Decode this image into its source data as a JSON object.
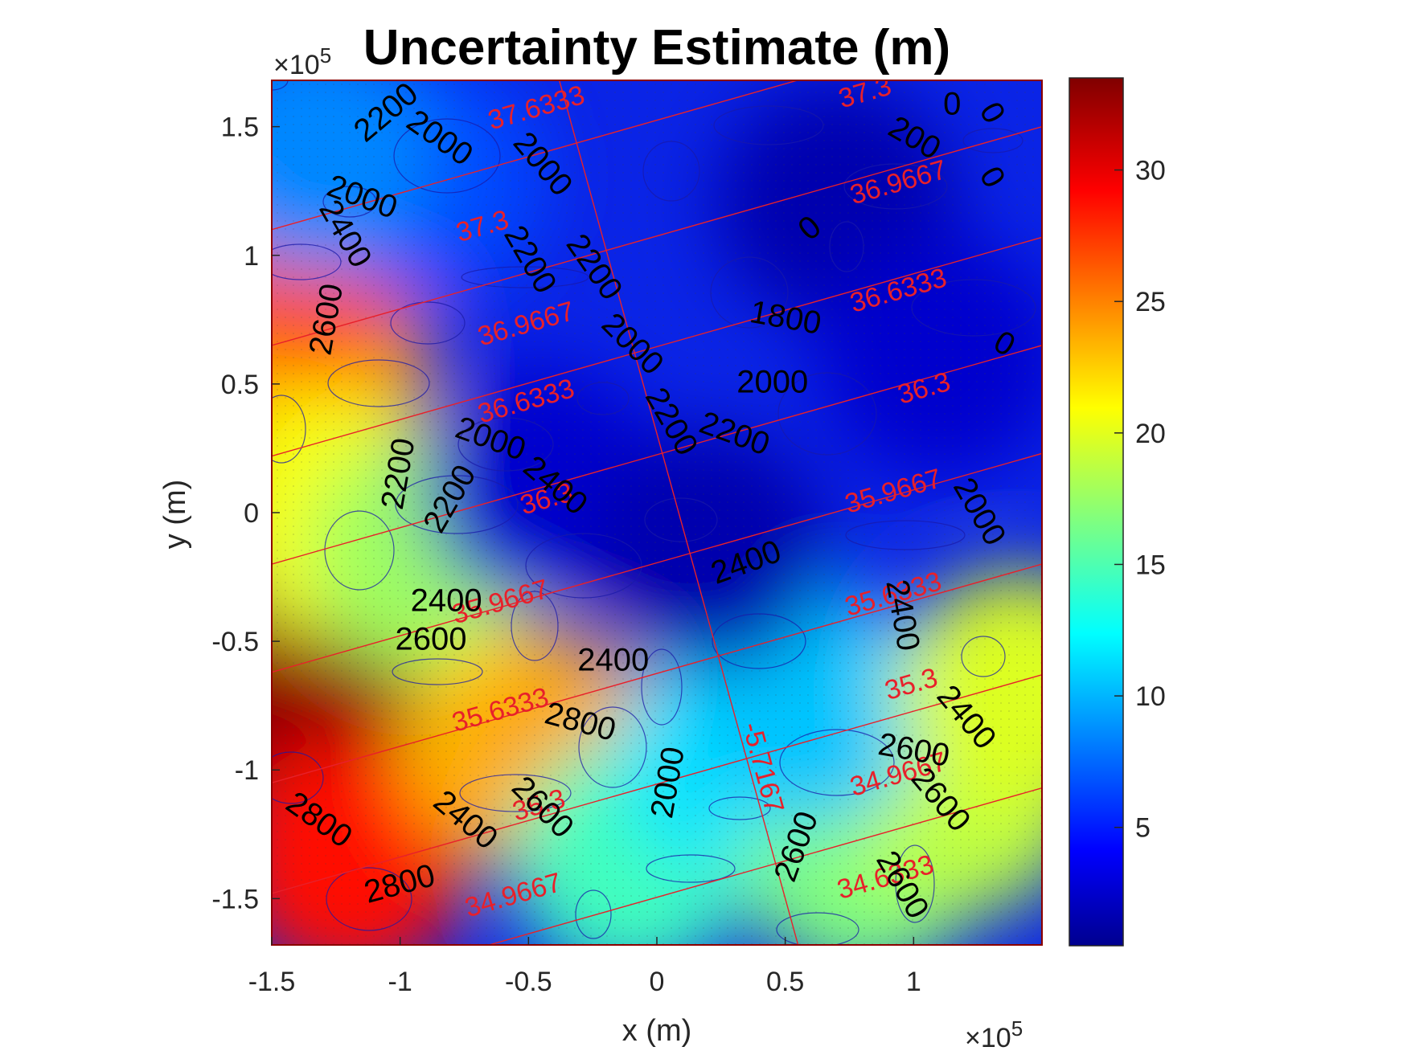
{
  "chart_data": {
    "type": "heatmap",
    "title": "Uncertainty Estimate (m)",
    "xlabel": "x (m)",
    "ylabel": "y (m)",
    "x_exponent_label": "×10",
    "x_exponent_power": "5",
    "y_exponent_label": "×10",
    "y_exponent_power": "5",
    "xlim": [
      -1.5,
      1.5
    ],
    "ylim": [
      -1.68,
      1.68
    ],
    "x_ticks": [
      "-1.5",
      "-1",
      "-0.5",
      "0",
      "0.5",
      "1"
    ],
    "x_tick_values": [
      -1.5,
      -1,
      -0.5,
      0,
      0.5,
      1
    ],
    "y_ticks": [
      "-1.5",
      "-1",
      "-0.5",
      "0",
      "0.5",
      "1",
      "1.5"
    ],
    "y_tick_values": [
      -1.5,
      -1,
      -0.5,
      0,
      0.5,
      1,
      1.5
    ],
    "colorbar": {
      "colormap": "jet",
      "range": [
        0.5,
        33.5
      ],
      "ticks": [
        "5",
        "10",
        "15",
        "20",
        "25",
        "30"
      ],
      "tick_values": [
        5,
        10,
        15,
        20,
        25,
        30
      ]
    },
    "regions": [
      {
        "x": -1.35,
        "y": 0.55,
        "value": 24
      },
      {
        "x": -1.35,
        "y": 1.0,
        "value": 27
      },
      {
        "x": -1.35,
        "y": -0.75,
        "value": 33
      },
      {
        "x": -1.2,
        "y": -1.35,
        "value": 29
      },
      {
        "x": -1.3,
        "y": 0.0,
        "value": 21
      },
      {
        "x": -0.9,
        "y": -0.15,
        "value": 18
      },
      {
        "x": -0.5,
        "y": -0.9,
        "value": 22
      },
      {
        "x": -0.4,
        "y": -0.95,
        "value": 24
      },
      {
        "x": -0.1,
        "y": -1.35,
        "value": 15
      },
      {
        "x": 0.3,
        "y": -0.95,
        "value": 12
      },
      {
        "x": 0.8,
        "y": -1.35,
        "value": 17
      },
      {
        "x": 1.2,
        "y": -1.1,
        "value": 19
      },
      {
        "x": 0.6,
        "y": -0.75,
        "value": 11
      },
      {
        "x": 1.4,
        "y": -0.7,
        "value": 20
      },
      {
        "x": -0.9,
        "y": 1.3,
        "value": 7
      },
      {
        "x": -0.45,
        "y": 0.1,
        "value": 3
      },
      {
        "x": 0.2,
        "y": -0.15,
        "value": 2
      },
      {
        "x": 0.7,
        "y": 1.2,
        "value": 2
      },
      {
        "x": 1.1,
        "y": 0.6,
        "value": 3
      },
      {
        "x": -1.35,
        "y": 1.4,
        "value": 9
      }
    ],
    "depth_contours": [
      {
        "label": "2200",
        "x": -1.05,
        "y": 1.55,
        "rotate": -40
      },
      {
        "label": "2000",
        "x": -0.85,
        "y": 1.45,
        "rotate": 35
      },
      {
        "label": "2000",
        "x": -1.15,
        "y": 1.22,
        "rotate": 20
      },
      {
        "label": "2400",
        "x": -1.22,
        "y": 1.08,
        "rotate": 60
      },
      {
        "label": "2600",
        "x": -1.28,
        "y": 0.75,
        "rotate": -80
      },
      {
        "label": "2000",
        "x": -0.45,
        "y": 1.35,
        "rotate": 50
      },
      {
        "label": "2200",
        "x": -0.5,
        "y": 0.98,
        "rotate": 60
      },
      {
        "label": "2200",
        "x": -0.25,
        "y": 0.95,
        "rotate": 55
      },
      {
        "label": "2000",
        "x": -0.1,
        "y": 0.65,
        "rotate": 45
      },
      {
        "label": "2200",
        "x": 0.05,
        "y": 0.35,
        "rotate": 60
      },
      {
        "label": "2000",
        "x": 0.45,
        "y": 0.5,
        "rotate": 0
      },
      {
        "label": "2200",
        "x": 0.3,
        "y": 0.3,
        "rotate": 20
      },
      {
        "label": "2000",
        "x": -0.65,
        "y": 0.28,
        "rotate": 20
      },
      {
        "label": "2400",
        "x": -0.4,
        "y": 0.1,
        "rotate": 40
      },
      {
        "label": "2200",
        "x": -1.0,
        "y": 0.15,
        "rotate": -80
      },
      {
        "label": "2200",
        "x": -0.8,
        "y": 0.05,
        "rotate": -60
      },
      {
        "label": "2400",
        "x": 0.35,
        "y": -0.2,
        "rotate": -20
      },
      {
        "label": "2400",
        "x": -0.82,
        "y": -0.35,
        "rotate": 0
      },
      {
        "label": "2600",
        "x": -0.88,
        "y": -0.5,
        "rotate": 0
      },
      {
        "label": "2400",
        "x": -0.17,
        "y": -0.58,
        "rotate": 0
      },
      {
        "label": "2800",
        "x": -0.3,
        "y": -0.82,
        "rotate": 15
      },
      {
        "label": "2000",
        "x": 0.05,
        "y": -1.05,
        "rotate": -80
      },
      {
        "label": "2600",
        "x": -0.45,
        "y": -1.15,
        "rotate": 45
      },
      {
        "label": "2400",
        "x": -0.75,
        "y": -1.2,
        "rotate": 40
      },
      {
        "label": "2800",
        "x": -1.32,
        "y": -1.2,
        "rotate": 35
      },
      {
        "label": "2800",
        "x": -1.0,
        "y": -1.45,
        "rotate": -15
      },
      {
        "label": "2600",
        "x": 0.55,
        "y": -1.3,
        "rotate": -70
      },
      {
        "label": "2600",
        "x": 1.0,
        "y": -0.93,
        "rotate": 10
      },
      {
        "label": "2600",
        "x": 1.1,
        "y": -1.12,
        "rotate": 50
      },
      {
        "label": "2400",
        "x": 1.2,
        "y": -0.8,
        "rotate": 50
      },
      {
        "label": "2600",
        "x": 0.95,
        "y": -1.45,
        "rotate": 60
      },
      {
        "label": "2000",
        "x": 1.25,
        "y": 0.0,
        "rotate": 60
      },
      {
        "label": "2400",
        "x": 0.95,
        "y": -0.4,
        "rotate": 80
      },
      {
        "label": "1800",
        "x": 0.5,
        "y": 0.75,
        "rotate": 10
      },
      {
        "label": "0",
        "x": 1.15,
        "y": 1.58,
        "rotate": 0
      },
      {
        "label": "0",
        "x": 1.3,
        "y": 1.55,
        "rotate": 60
      },
      {
        "label": "0",
        "x": 1.3,
        "y": 1.3,
        "rotate": 60
      },
      {
        "label": "0",
        "x": 0.6,
        "y": 1.1,
        "rotate": -40
      },
      {
        "label": "0",
        "x": 1.35,
        "y": 0.65,
        "rotate": 30
      },
      {
        "label": "200",
        "x": 1.0,
        "y": 1.45,
        "rotate": 30
      }
    ],
    "grid_lines": {
      "latitude": [
        {
          "label": "37.6333",
          "x": -0.46,
          "y": 1.54
        },
        {
          "label": "37.3",
          "x": 0.82,
          "y": 1.6
        },
        {
          "label": "37.3",
          "x": -0.67,
          "y": 1.08
        },
        {
          "label": "36.9667",
          "x": 0.95,
          "y": 1.25
        },
        {
          "label": "36.9667",
          "x": -0.5,
          "y": 0.7
        },
        {
          "label": "36.6333",
          "x": 0.95,
          "y": 0.83
        },
        {
          "label": "36.6333",
          "x": -0.5,
          "y": 0.4
        },
        {
          "label": "36.3",
          "x": 1.05,
          "y": 0.45
        },
        {
          "label": "36.3",
          "x": -0.42,
          "y": 0.02
        },
        {
          "label": "35.9667",
          "x": 0.93,
          "y": 0.05
        },
        {
          "label": "35.9667",
          "x": -0.6,
          "y": -0.38
        },
        {
          "label": "35.6333",
          "x": 0.93,
          "y": -0.35
        },
        {
          "label": "35.6333",
          "x": -0.6,
          "y": -0.8
        },
        {
          "label": "35.3",
          "x": 1.0,
          "y": -0.7
        },
        {
          "label": "35.3",
          "x": -0.45,
          "y": -1.17
        },
        {
          "label": "34.9667",
          "x": 0.95,
          "y": -1.05
        },
        {
          "label": "34.9667",
          "x": -0.55,
          "y": -1.52
        },
        {
          "label": "34.6333",
          "x": 0.9,
          "y": -1.45
        }
      ],
      "longitude": [
        {
          "label": "-5.7167",
          "x": 0.38,
          "y": -1.0
        }
      ]
    }
  }
}
